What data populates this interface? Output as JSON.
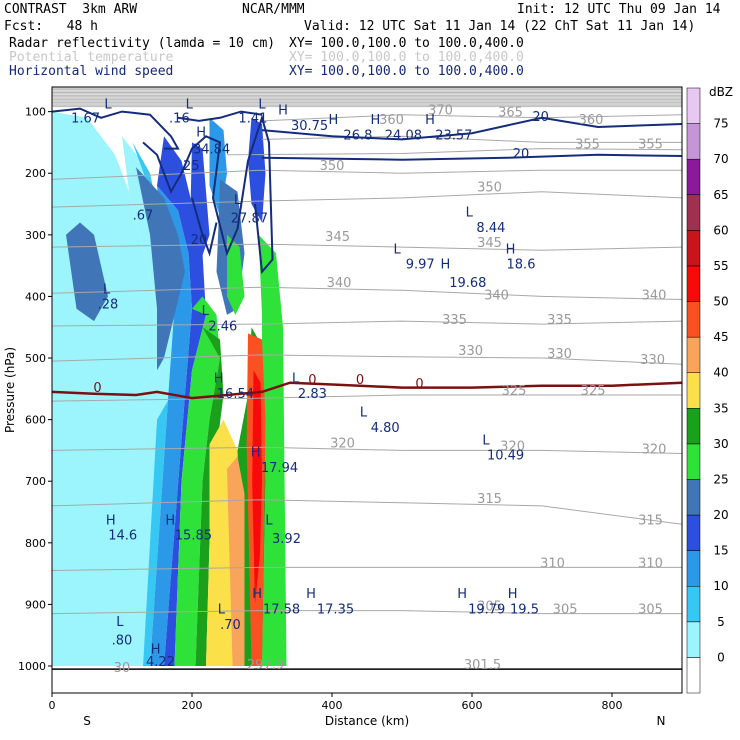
{
  "header": {
    "model": "CONTRAST  3km ARW",
    "center": "NCAR/MMM",
    "init": "Init: 12 UTC Thu 09 Jan 14",
    "fcst": "Fcst:   48 h",
    "valid": "Valid: 12 UTC Sat 11 Jan 14 (22 ChT Sat 11 Jan 14)",
    "field1": "Radar reflectivity (lamda = 10 cm)",
    "field1_xy": "XY= 100.0,100.0 to 100.0,400.0",
    "field2": "Potential temperature",
    "field2_xy": "XY= 100.0,100.0 to 100.0,400.0",
    "field3": "Horizontal wind speed",
    "field3_xy": "XY= 100.0,100.0 to 100.0,400.0"
  },
  "colors": {
    "dbz_scale": [
      "#ffffff",
      "#9cf5fc",
      "#36c7f2",
      "#2c99e8",
      "#2d4fe0",
      "#4076b8",
      "#2fe23a",
      "#1aa01a",
      "#fbe04a",
      "#f8a45a",
      "#fb5022",
      "#f80a0a",
      "#c8141a",
      "#a03050",
      "#8a1a9a",
      "#c496d8"
    ],
    "theta": "#a8a8a8",
    "wind": "#142c7c",
    "zero_line": "#7c1010"
  },
  "chart_data": {
    "type": "cross-section",
    "xlabel": "Distance (km)",
    "ylabel": "Pressure (hPa)",
    "xlim": [
      0,
      900
    ],
    "ylim": [
      1000,
      60
    ],
    "xticks": [
      0,
      200,
      400,
      600,
      800
    ],
    "yticks": [
      100,
      200,
      300,
      400,
      500,
      600,
      700,
      800,
      900,
      1000
    ],
    "x_end_labels": {
      "left": "S",
      "right": "N"
    },
    "colorbar": {
      "unit": "dBZ",
      "levels": [
        0,
        5,
        10,
        15,
        20,
        25,
        30,
        35,
        40,
        45,
        50,
        55,
        60,
        65,
        70,
        75
      ]
    },
    "theta_labels": [
      {
        "text": "370",
        "x": 555,
        "p": 105
      },
      {
        "text": "365",
        "x": 655,
        "p": 108
      },
      {
        "text": "360",
        "x": 770,
        "p": 120
      },
      {
        "text": "360",
        "x": 485,
        "p": 120
      },
      {
        "text": "355",
        "x": 765,
        "p": 160
      },
      {
        "text": "355",
        "x": 855,
        "p": 160
      },
      {
        "text": "350",
        "x": 400,
        "p": 195
      },
      {
        "text": "350",
        "x": 625,
        "p": 230
      },
      {
        "text": "345",
        "x": 408,
        "p": 310
      },
      {
        "text": "345",
        "x": 625,
        "p": 320
      },
      {
        "text": "340",
        "x": 410,
        "p": 385
      },
      {
        "text": "340",
        "x": 635,
        "p": 405
      },
      {
        "text": "340",
        "x": 860,
        "p": 405
      },
      {
        "text": "335",
        "x": 575,
        "p": 445
      },
      {
        "text": "335",
        "x": 725,
        "p": 445
      },
      {
        "text": "330",
        "x": 598,
        "p": 495
      },
      {
        "text": "330",
        "x": 725,
        "p": 500
      },
      {
        "text": "330",
        "x": 858,
        "p": 510
      },
      {
        "text": "325",
        "x": 660,
        "p": 560
      },
      {
        "text": "325",
        "x": 773,
        "p": 560
      },
      {
        "text": "320",
        "x": 415,
        "p": 645
      },
      {
        "text": "320",
        "x": 658,
        "p": 650
      },
      {
        "text": "320",
        "x": 860,
        "p": 655
      },
      {
        "text": "315",
        "x": 625,
        "p": 735
      },
      {
        "text": "315",
        "x": 855,
        "p": 770
      },
      {
        "text": "310",
        "x": 715,
        "p": 840
      },
      {
        "text": "310",
        "x": 855,
        "p": 840
      },
      {
        "text": "305",
        "x": 625,
        "p": 910
      },
      {
        "text": "305",
        "x": 733,
        "p": 915
      },
      {
        "text": "305",
        "x": 855,
        "p": 915
      },
      {
        "text": "301.5",
        "x": 615,
        "p": 1005
      },
      {
        "text": "30",
        "x": 100,
        "p": 1010
      },
      {
        "text": "297.9",
        "x": 305,
        "p": 1005
      }
    ],
    "wind_labels": [
      {
        "text": "H",
        "x": 213,
        "p": 140
      },
      {
        "text": "34.84",
        "x": 228,
        "p": 168
      },
      {
        "text": "25",
        "x": 199,
        "p": 195
      },
      {
        "text": ".67",
        "x": 130,
        "p": 275
      },
      {
        "text": "20",
        "x": 210,
        "p": 315
      },
      {
        "text": "L",
        "x": 265,
        "p": 250
      },
      {
        "text": "27.87",
        "x": 282,
        "p": 280
      },
      {
        "text": "L",
        "x": 80,
        "p": 95
      },
      {
        "text": "1.67",
        "x": 48,
        "p": 118
      },
      {
        "text": "L",
        "x": 196,
        "p": 95
      },
      {
        "text": ".16",
        "x": 182,
        "p": 118
      },
      {
        "text": "L",
        "x": 300,
        "p": 95
      },
      {
        "text": "1.41",
        "x": 287,
        "p": 118
      },
      {
        "text": "H",
        "x": 330,
        "p": 105
      },
      {
        "text": "30.75",
        "x": 368,
        "p": 130
      },
      {
        "text": "H",
        "x": 402,
        "p": 120
      },
      {
        "text": "26.8",
        "x": 437,
        "p": 145
      },
      {
        "text": "H",
        "x": 462,
        "p": 120
      },
      {
        "text": "24.08",
        "x": 502,
        "p": 145
      },
      {
        "text": "H",
        "x": 540,
        "p": 120
      },
      {
        "text": "23.57",
        "x": 574,
        "p": 145
      },
      {
        "text": "20",
        "x": 698,
        "p": 115
      },
      {
        "text": "20",
        "x": 670,
        "p": 175
      },
      {
        "text": "L",
        "x": 596,
        "p": 270
      },
      {
        "text": "8.44",
        "x": 627,
        "p": 295
      },
      {
        "text": "L",
        "x": 493,
        "p": 330
      },
      {
        "text": "9.97",
        "x": 526,
        "p": 355
      },
      {
        "text": "H",
        "x": 562,
        "p": 355
      },
      {
        "text": "19.68",
        "x": 594,
        "p": 385
      },
      {
        "text": "H",
        "x": 655,
        "p": 330
      },
      {
        "text": "18.6",
        "x": 670,
        "p": 355
      },
      {
        "text": "L",
        "x": 78,
        "p": 395
      },
      {
        "text": ".28",
        "x": 80,
        "p": 420
      },
      {
        "text": "L",
        "x": 219,
        "p": 430
      },
      {
        "text": "2.46",
        "x": 244,
        "p": 455
      },
      {
        "text": "H",
        "x": 238,
        "p": 540
      },
      {
        "text": "16.54",
        "x": 262,
        "p": 565
      },
      {
        "text": "L",
        "x": 348,
        "p": 540
      },
      {
        "text": "2.83",
        "x": 372,
        "p": 565
      },
      {
        "text": "L",
        "x": 445,
        "p": 595
      },
      {
        "text": "4.80",
        "x": 476,
        "p": 620
      },
      {
        "text": "L",
        "x": 620,
        "p": 640
      },
      {
        "text": "10.49",
        "x": 648,
        "p": 665
      },
      {
        "text": "H",
        "x": 291,
        "p": 660
      },
      {
        "text": "17.94",
        "x": 325,
        "p": 685
      },
      {
        "text": "H",
        "x": 84,
        "p": 770
      },
      {
        "text": "14.6",
        "x": 101,
        "p": 795
      },
      {
        "text": "H",
        "x": 169,
        "p": 770
      },
      {
        "text": "15.85",
        "x": 202,
        "p": 795
      },
      {
        "text": "L",
        "x": 310,
        "p": 770
      },
      {
        "text": "3.92",
        "x": 335,
        "p": 800
      },
      {
        "text": "H",
        "x": 293,
        "p": 890
      },
      {
        "text": "17.58",
        "x": 328,
        "p": 915
      },
      {
        "text": "H",
        "x": 370,
        "p": 890
      },
      {
        "text": "17.35",
        "x": 405,
        "p": 915
      },
      {
        "text": "L",
        "x": 242,
        "p": 915
      },
      {
        "text": ".70",
        "x": 255,
        "p": 940
      },
      {
        "text": "L",
        "x": 97,
        "p": 935
      },
      {
        "text": ".80",
        "x": 100,
        "p": 965
      },
      {
        "text": "H",
        "x": 148,
        "p": 980
      },
      {
        "text": "4.22",
        "x": 155,
        "p": 1000
      },
      {
        "text": "H",
        "x": 586,
        "p": 890
      },
      {
        "text": "19.79",
        "x": 621,
        "p": 915
      },
      {
        "text": "H",
        "x": 658,
        "p": 890
      },
      {
        "text": "19.5",
        "x": 675,
        "p": 915
      }
    ],
    "zero_labels": [
      {
        "text": "0",
        "x": 65,
        "p": 555
      },
      {
        "text": "0",
        "x": 372,
        "p": 542
      },
      {
        "text": "0",
        "x": 440,
        "p": 542
      },
      {
        "text": "0",
        "x": 525,
        "p": 549
      }
    ]
  }
}
